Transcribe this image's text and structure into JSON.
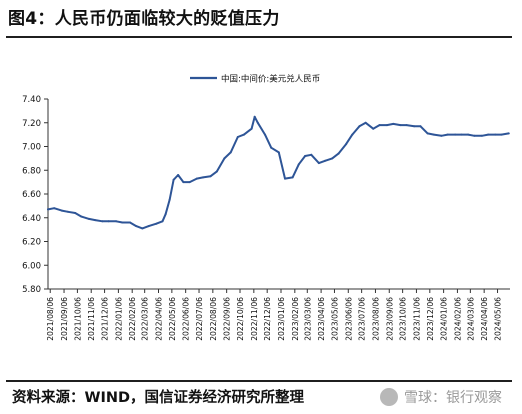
{
  "figure_title": "图4：人民币仍面临较大的贬值压力",
  "source_note": "资料来源：WIND，国信证券经济研究所整理",
  "watermark": {
    "text": "雪球：银行观察",
    "logo": "snowball-logo"
  },
  "chart_data": {
    "type": "line",
    "title": "",
    "xlabel": "",
    "ylabel": "",
    "ylim": [
      5.8,
      7.4
    ],
    "yticks": [
      "5.80",
      "6.00",
      "6.20",
      "6.40",
      "6.60",
      "6.80",
      "7.00",
      "7.20",
      "7.40"
    ],
    "grid": false,
    "legend_position": "top-center",
    "colors": {
      "series": "#2e5597",
      "axis": "#333333"
    },
    "x_tick_labels": [
      "2021/08/06",
      "2021/09/06",
      "2021/10/06",
      "2021/11/06",
      "2021/12/06",
      "2022/01/06",
      "2022/02/06",
      "2022/03/06",
      "2022/04/06",
      "2022/05/06",
      "2022/06/06",
      "2022/07/06",
      "2022/08/06",
      "2022/09/06",
      "2022/10/06",
      "2022/11/06",
      "2022/12/06",
      "2023/01/06",
      "2023/02/06",
      "2023/03/06",
      "2023/04/06",
      "2023/05/06",
      "2023/06/06",
      "2023/07/06",
      "2023/08/06",
      "2023/09/06",
      "2023/10/06",
      "2023/11/06",
      "2023/12/06",
      "2024/01/06",
      "2024/02/06",
      "2024/03/06",
      "2024/04/06",
      "2024/05/06"
    ],
    "series": [
      {
        "name": "中国:中间价:美元兑人民币",
        "x": [
          "2021/08/01",
          "2021/08/15",
          "2021/09/01",
          "2021/09/15",
          "2021/10/01",
          "2021/10/15",
          "2021/11/01",
          "2021/11/15",
          "2021/12/01",
          "2021/12/15",
          "2022/01/01",
          "2022/01/15",
          "2022/02/01",
          "2022/02/15",
          "2022/03/01",
          "2022/03/15",
          "2022/04/01",
          "2022/04/15",
          "2022/04/22",
          "2022/05/01",
          "2022/05/10",
          "2022/05/20",
          "2022/06/01",
          "2022/06/15",
          "2022/07/01",
          "2022/07/15",
          "2022/08/01",
          "2022/08/15",
          "2022/09/01",
          "2022/09/15",
          "2022/10/01",
          "2022/10/15",
          "2022/11/01",
          "2022/11/08",
          "2022/11/15",
          "2022/12/01",
          "2022/12/15",
          "2023/01/01",
          "2023/01/15",
          "2023/02/01",
          "2023/02/15",
          "2023/03/01",
          "2023/03/15",
          "2023/04/01",
          "2023/04/15",
          "2023/05/01",
          "2023/05/15",
          "2023/06/01",
          "2023/06/15",
          "2023/07/01",
          "2023/07/15",
          "2023/08/01",
          "2023/08/15",
          "2023/09/01",
          "2023/09/15",
          "2023/10/01",
          "2023/10/15",
          "2023/11/01",
          "2023/11/15",
          "2023/12/01",
          "2023/12/15",
          "2024/01/01",
          "2024/01/15",
          "2024/02/01",
          "2024/02/15",
          "2024/03/01",
          "2024/03/15",
          "2024/04/01",
          "2024/04/15",
          "2024/05/01",
          "2024/05/15",
          "2024/05/31"
        ],
        "y": [
          6.47,
          6.48,
          6.46,
          6.45,
          6.44,
          6.41,
          6.39,
          6.38,
          6.37,
          6.37,
          6.37,
          6.36,
          6.36,
          6.33,
          6.31,
          6.33,
          6.35,
          6.37,
          6.43,
          6.55,
          6.72,
          6.76,
          6.7,
          6.7,
          6.73,
          6.74,
          6.75,
          6.79,
          6.9,
          6.95,
          7.08,
          7.1,
          7.15,
          7.25,
          7.2,
          7.1,
          6.99,
          6.95,
          6.73,
          6.74,
          6.85,
          6.92,
          6.93,
          6.86,
          6.88,
          6.9,
          6.94,
          7.02,
          7.1,
          7.17,
          7.2,
          7.15,
          7.18,
          7.18,
          7.19,
          7.18,
          7.18,
          7.17,
          7.17,
          7.11,
          7.1,
          7.09,
          7.1,
          7.1,
          7.1,
          7.1,
          7.09,
          7.09,
          7.1,
          7.1,
          7.1,
          7.11
        ]
      }
    ]
  }
}
